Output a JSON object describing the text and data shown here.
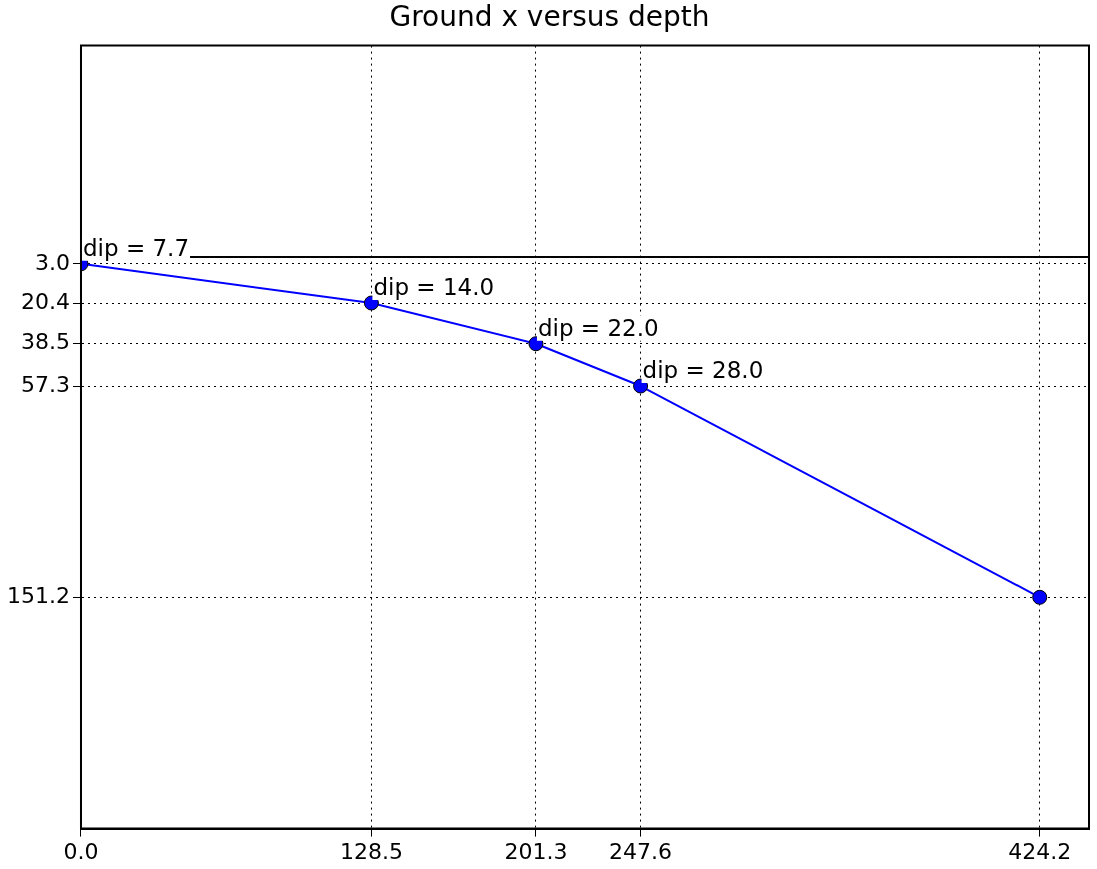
{
  "chart_data": {
    "type": "line",
    "title": "Ground x versus depth",
    "x": [
      0,
      128.5,
      201.3,
      247.6,
      424.2
    ],
    "series": [
      {
        "color": "#0000ff",
        "values": [
          3.0,
          20.4,
          38.5,
          57.3,
          151.2
        ]
      }
    ],
    "xlim": [
      0,
      446
    ],
    "ylim": [
      254,
      -94
    ],
    "xticks": [
      {
        "value": 0,
        "label": "0.0"
      },
      128.5,
      201.3,
      247.6,
      424.2
    ],
    "yticks": [
      {
        "value": 3,
        "label": "3.0"
      },
      20.4,
      38.5,
      57.3,
      151.2
    ],
    "ref_lines": [
      {
        "axis": "y",
        "value": 0,
        "color": "#000000",
        "line_style": "solid"
      }
    ],
    "annotations": [
      {
        "text": "dip = 7.7",
        "x": 0,
        "y": 3.0
      },
      {
        "text": "dip = 14.0",
        "x": 128.5,
        "y": 20.4
      },
      {
        "text": "dip = 22.0",
        "x": 201.3,
        "y": 38.5
      },
      {
        "text": "dip = 28.0",
        "x": 247.6,
        "y": 57.3
      }
    ],
    "grid": true,
    "marker": "circle",
    "line_style": "solid",
    "legend": false
  }
}
